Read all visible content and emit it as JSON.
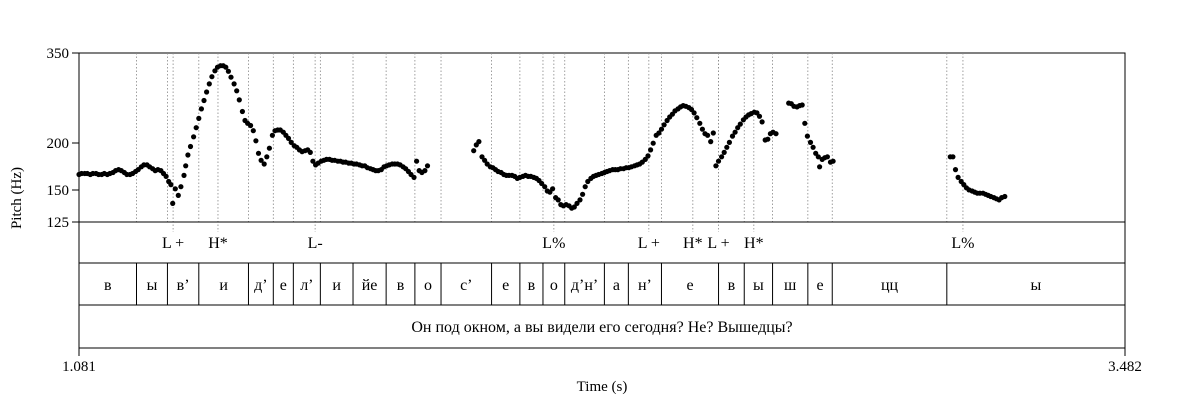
{
  "chart_data": {
    "type": "scatter",
    "title": "",
    "xlabel": "Time (s)",
    "ylabel": "Pitch (Hz)",
    "xlim": [
      1.081,
      3.482
    ],
    "ylim_labels": [
      "125",
      "150",
      "200",
      "350"
    ],
    "x_tick_labels": [
      "1.081",
      "3.482"
    ],
    "scale": "log",
    "series": [
      {
        "points": [
          [
            1.081,
            167
          ],
          [
            1.087,
            168
          ],
          [
            1.094,
            168
          ],
          [
            1.1,
            168
          ],
          [
            1.107,
            167
          ],
          [
            1.113,
            168
          ],
          [
            1.12,
            168
          ],
          [
            1.126,
            167
          ],
          [
            1.133,
            167
          ],
          [
            1.139,
            168
          ],
          [
            1.146,
            167
          ],
          [
            1.152,
            168
          ],
          [
            1.159,
            169
          ],
          [
            1.165,
            171
          ],
          [
            1.172,
            172
          ],
          [
            1.178,
            171
          ],
          [
            1.185,
            169
          ],
          [
            1.191,
            167
          ],
          [
            1.198,
            167
          ],
          [
            1.204,
            168
          ],
          [
            1.211,
            170
          ],
          [
            1.217,
            172
          ],
          [
            1.224,
            175
          ],
          [
            1.23,
            177
          ],
          [
            1.237,
            177
          ],
          [
            1.243,
            175
          ],
          [
            1.25,
            173
          ],
          [
            1.256,
            171
          ],
          [
            1.262,
            172
          ],
          [
            1.269,
            171
          ],
          [
            1.275,
            168
          ],
          [
            1.281,
            165
          ],
          [
            1.287,
            160
          ],
          [
            1.292,
            157
          ],
          [
            1.296,
            140
          ],
          [
            1.302,
            153
          ],
          [
            1.309,
            147
          ],
          [
            1.315,
            155
          ],
          [
            1.322,
            166
          ],
          [
            1.326,
            176
          ],
          [
            1.331,
            188
          ],
          [
            1.337,
            198
          ],
          [
            1.344,
            210
          ],
          [
            1.35,
            222
          ],
          [
            1.356,
            235
          ],
          [
            1.362,
            249
          ],
          [
            1.368,
            262
          ],
          [
            1.374,
            276
          ],
          [
            1.38,
            290
          ],
          [
            1.386,
            303
          ],
          [
            1.393,
            314
          ],
          [
            1.399,
            321
          ],
          [
            1.406,
            324
          ],
          [
            1.412,
            324
          ],
          [
            1.418,
            321
          ],
          [
            1.424,
            313
          ],
          [
            1.43,
            302
          ],
          [
            1.437,
            290
          ],
          [
            1.443,
            278
          ],
          [
            1.449,
            263
          ],
          [
            1.456,
            245
          ],
          [
            1.462,
            232
          ],
          [
            1.468,
            228
          ],
          [
            1.475,
            225
          ],
          [
            1.481,
            218
          ],
          [
            1.487,
            205
          ],
          [
            1.493,
            190
          ],
          [
            1.499,
            182
          ],
          [
            1.506,
            178
          ],
          [
            1.512,
            186
          ],
          [
            1.518,
            196
          ],
          [
            1.525,
            212
          ],
          [
            1.531,
            218
          ],
          [
            1.537,
            219
          ],
          [
            1.543,
            219
          ],
          [
            1.55,
            216
          ],
          [
            1.556,
            212
          ],
          [
            1.562,
            208
          ],
          [
            1.568,
            203
          ],
          [
            1.575,
            199
          ],
          [
            1.581,
            197
          ],
          [
            1.587,
            194
          ],
          [
            1.593,
            192
          ],
          [
            1.6,
            193
          ],
          [
            1.606,
            194
          ],
          [
            1.612,
            191
          ],
          [
            1.618,
            181
          ],
          [
            1.624,
            177
          ],
          [
            1.63,
            179
          ],
          [
            1.637,
            181
          ],
          [
            1.643,
            182
          ],
          [
            1.649,
            183
          ],
          [
            1.656,
            183
          ],
          [
            1.662,
            182
          ],
          [
            1.668,
            182
          ],
          [
            1.675,
            181
          ],
          [
            1.681,
            181
          ],
          [
            1.687,
            180
          ],
          [
            1.693,
            180
          ],
          [
            1.7,
            179
          ],
          [
            1.706,
            179
          ],
          [
            1.712,
            178
          ],
          [
            1.718,
            178
          ],
          [
            1.725,
            177
          ],
          [
            1.731,
            176
          ],
          [
            1.737,
            176
          ],
          [
            1.743,
            174
          ],
          [
            1.75,
            173
          ],
          [
            1.756,
            172
          ],
          [
            1.762,
            171
          ],
          [
            1.768,
            171
          ],
          [
            1.775,
            172
          ],
          [
            1.781,
            175
          ],
          [
            1.787,
            176
          ],
          [
            1.793,
            177
          ],
          [
            1.8,
            178
          ],
          [
            1.806,
            178
          ],
          [
            1.812,
            178
          ],
          [
            1.818,
            177
          ],
          [
            1.825,
            175
          ],
          [
            1.831,
            173
          ],
          [
            1.837,
            170
          ],
          [
            1.843,
            167
          ],
          [
            1.85,
            164
          ],
          [
            1.856,
            181
          ],
          [
            1.862,
            171
          ],
          [
            1.868,
            169
          ],
          [
            1.875,
            171
          ],
          [
            1.881,
            176
          ],
          [
            1.987,
            193
          ],
          [
            1.993,
            200
          ],
          [
            1.999,
            204
          ],
          [
            2.006,
            186
          ],
          [
            2.012,
            182
          ],
          [
            2.018,
            178
          ],
          [
            2.025,
            175
          ],
          [
            2.031,
            174
          ],
          [
            2.037,
            172
          ],
          [
            2.043,
            170
          ],
          [
            2.05,
            169
          ],
          [
            2.056,
            167
          ],
          [
            2.062,
            166
          ],
          [
            2.068,
            166
          ],
          [
            2.075,
            166
          ],
          [
            2.081,
            165
          ],
          [
            2.087,
            163
          ],
          [
            2.093,
            164
          ],
          [
            2.1,
            165
          ],
          [
            2.106,
            166
          ],
          [
            2.112,
            165
          ],
          [
            2.118,
            165
          ],
          [
            2.125,
            164
          ],
          [
            2.131,
            163
          ],
          [
            2.137,
            161
          ],
          [
            2.143,
            158
          ],
          [
            2.15,
            155
          ],
          [
            2.156,
            151
          ],
          [
            2.162,
            150
          ],
          [
            2.168,
            153
          ],
          [
            2.175,
            145
          ],
          [
            2.181,
            143
          ],
          [
            2.187,
            139
          ],
          [
            2.193,
            138
          ],
          [
            2.199,
            139
          ],
          [
            2.206,
            138
          ],
          [
            2.212,
            136
          ],
          [
            2.218,
            137
          ],
          [
            2.224,
            140
          ],
          [
            2.231,
            143
          ],
          [
            2.237,
            148
          ],
          [
            2.243,
            155
          ],
          [
            2.249,
            160
          ],
          [
            2.256,
            163
          ],
          [
            2.262,
            165
          ],
          [
            2.268,
            166
          ],
          [
            2.274,
            167
          ],
          [
            2.281,
            168
          ],
          [
            2.287,
            169
          ],
          [
            2.293,
            170
          ],
          [
            2.299,
            171
          ],
          [
            2.306,
            172
          ],
          [
            2.312,
            172
          ],
          [
            2.318,
            172
          ],
          [
            2.324,
            173
          ],
          [
            2.331,
            173
          ],
          [
            2.337,
            174
          ],
          [
            2.343,
            174
          ],
          [
            2.349,
            175
          ],
          [
            2.356,
            176
          ],
          [
            2.362,
            177
          ],
          [
            2.368,
            178
          ],
          [
            2.374,
            180
          ],
          [
            2.381,
            183
          ],
          [
            2.387,
            187
          ],
          [
            2.393,
            194
          ],
          [
            2.399,
            202
          ],
          [
            2.406,
            212
          ],
          [
            2.412,
            215
          ],
          [
            2.418,
            220
          ],
          [
            2.424,
            226
          ],
          [
            2.431,
            232
          ],
          [
            2.437,
            237
          ],
          [
            2.443,
            241
          ],
          [
            2.449,
            246
          ],
          [
            2.456,
            249
          ],
          [
            2.462,
            252
          ],
          [
            2.468,
            254
          ],
          [
            2.474,
            253
          ],
          [
            2.481,
            251
          ],
          [
            2.487,
            248
          ],
          [
            2.493,
            243
          ],
          [
            2.499,
            236
          ],
          [
            2.506,
            228
          ],
          [
            2.512,
            220
          ],
          [
            2.518,
            214
          ],
          [
            2.524,
            212
          ],
          [
            2.531,
            204
          ],
          [
            2.537,
            215
          ],
          [
            2.543,
            176
          ],
          [
            2.549,
            181
          ],
          [
            2.556,
            186
          ],
          [
            2.562,
            191
          ],
          [
            2.568,
            197
          ],
          [
            2.574,
            203
          ],
          [
            2.581,
            211
          ],
          [
            2.587,
            216
          ],
          [
            2.593,
            222
          ],
          [
            2.599,
            227
          ],
          [
            2.606,
            233
          ],
          [
            2.612,
            237
          ],
          [
            2.618,
            240
          ],
          [
            2.624,
            242
          ],
          [
            2.631,
            244
          ],
          [
            2.637,
            243
          ],
          [
            2.643,
            238
          ],
          [
            2.649,
            230
          ],
          [
            2.656,
            206
          ],
          [
            2.662,
            207
          ],
          [
            2.668,
            214
          ],
          [
            2.674,
            216
          ],
          [
            2.681,
            214
          ],
          [
            2.71,
            258
          ],
          [
            2.716,
            257
          ],
          [
            2.722,
            253
          ],
          [
            2.729,
            252
          ],
          [
            2.735,
            254
          ],
          [
            2.741,
            255
          ],
          [
            2.747,
            228
          ],
          [
            2.753,
            211
          ],
          [
            2.76,
            203
          ],
          [
            2.766,
            197
          ],
          [
            2.772,
            190
          ],
          [
            2.778,
            186
          ],
          [
            2.781,
            175
          ],
          [
            2.787,
            183
          ],
          [
            2.793,
            185
          ],
          [
            2.799,
            186
          ],
          [
            2.806,
            180
          ],
          [
            2.812,
            181
          ],
          [
            3.081,
            186
          ],
          [
            3.087,
            186
          ],
          [
            3.093,
            172
          ],
          [
            3.099,
            164
          ],
          [
            3.106,
            160
          ],
          [
            3.112,
            157
          ],
          [
            3.118,
            154
          ],
          [
            3.124,
            152
          ],
          [
            3.131,
            151
          ],
          [
            3.137,
            150
          ],
          [
            3.143,
            149
          ],
          [
            3.149,
            149
          ],
          [
            3.156,
            149
          ],
          [
            3.162,
            148
          ],
          [
            3.168,
            147
          ],
          [
            3.174,
            146
          ],
          [
            3.181,
            145
          ],
          [
            3.187,
            144
          ],
          [
            3.193,
            143
          ],
          [
            3.199,
            145
          ],
          [
            3.206,
            146
          ]
        ]
      }
    ]
  },
  "tiers": {
    "tones": [
      {
        "label": "L +",
        "x": 1.297
      },
      {
        "label": "H*",
        "x": 1.4
      },
      {
        "label": "L-",
        "x": 1.623
      },
      {
        "label": "L%",
        "x": 2.171
      },
      {
        "label": "L +",
        "x": 2.389
      },
      {
        "label": "H*",
        "x": 2.49
      },
      {
        "label": "L +",
        "x": 2.549
      },
      {
        "label": "H*",
        "x": 2.63
      },
      {
        "label": "L%",
        "x": 3.11
      }
    ],
    "segments": [
      {
        "label": "в",
        "start": 1.081,
        "end": 1.213
      },
      {
        "label": "ы",
        "start": 1.213,
        "end": 1.284
      },
      {
        "label": "в’",
        "start": 1.284,
        "end": 1.356
      },
      {
        "label": "и",
        "start": 1.356,
        "end": 1.47
      },
      {
        "label": "д’",
        "start": 1.47,
        "end": 1.527
      },
      {
        "label": "е",
        "start": 1.527,
        "end": 1.573
      },
      {
        "label": "л’",
        "start": 1.573,
        "end": 1.635
      },
      {
        "label": "и",
        "start": 1.635,
        "end": 1.71
      },
      {
        "label": "йе",
        "start": 1.71,
        "end": 1.786
      },
      {
        "label": "в",
        "start": 1.786,
        "end": 1.852
      },
      {
        "label": "о",
        "start": 1.852,
        "end": 1.912
      },
      {
        "label": "с’",
        "start": 1.912,
        "end": 2.028
      },
      {
        "label": "е",
        "start": 2.028,
        "end": 2.093
      },
      {
        "label": "в",
        "start": 2.093,
        "end": 2.146
      },
      {
        "label": "о",
        "start": 2.146,
        "end": 2.196
      },
      {
        "label": "д’н’",
        "start": 2.196,
        "end": 2.287
      },
      {
        "label": "а",
        "start": 2.287,
        "end": 2.342
      },
      {
        "label": "н’",
        "start": 2.342,
        "end": 2.418
      },
      {
        "label": "е",
        "start": 2.418,
        "end": 2.549
      },
      {
        "label": "в",
        "start": 2.549,
        "end": 2.608
      },
      {
        "label": "ы",
        "start": 2.608,
        "end": 2.673
      },
      {
        "label": "ш",
        "start": 2.673,
        "end": 2.754
      },
      {
        "label": "е",
        "start": 2.754,
        "end": 2.81
      },
      {
        "label": "цц",
        "start": 2.81,
        "end": 3.073
      },
      {
        "label": "ы",
        "start": 3.073,
        "end": 3.482
      }
    ],
    "sentence": "Он под окном, а вы видели его сегодня? Не? Вышедцы?"
  }
}
